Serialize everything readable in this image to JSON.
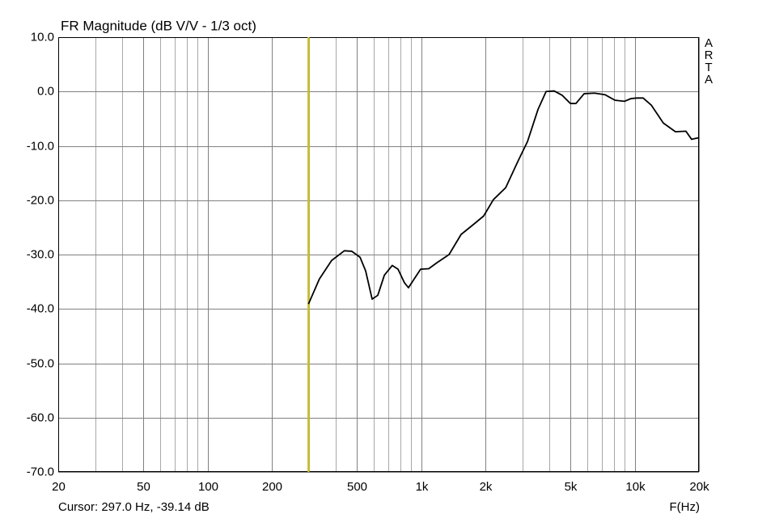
{
  "chart_data": {
    "type": "line",
    "title": "FR Magnitude (dB V/V - 1/3 oct)",
    "x_label": "F(Hz)",
    "watermark": "ARTA",
    "xlog": true,
    "grid": true,
    "xlim": [
      20,
      20000
    ],
    "ylim": [
      -70,
      10
    ],
    "xticks": [
      20,
      50,
      100,
      200,
      500,
      {
        "value": 1000,
        "label": "1k"
      },
      {
        "value": 2000,
        "label": "2k"
      },
      {
        "value": 5000,
        "label": "5k"
      },
      {
        "value": 10000,
        "label": "10k"
      },
      {
        "value": 20000,
        "label": "20k"
      }
    ],
    "xminor": [
      30,
      40,
      60,
      70,
      80,
      90,
      300,
      400,
      600,
      700,
      800,
      900,
      3000,
      4000,
      6000,
      7000,
      8000,
      9000
    ],
    "yticks": [
      {
        "value": 10,
        "label": "10.0"
      },
      {
        "value": 0,
        "label": "0.0"
      },
      {
        "value": -10,
        "label": "-10.0"
      },
      {
        "value": -20,
        "label": "-20.0"
      },
      {
        "value": -30,
        "label": "-30.0"
      },
      {
        "value": -40,
        "label": "-40.0"
      },
      {
        "value": -50,
        "label": "-50.0"
      },
      {
        "value": -60,
        "label": "-60.0"
      },
      {
        "value": -70,
        "label": "-70.0"
      }
    ],
    "cursor": {
      "x": 297.0,
      "y": -39.14,
      "color": "#c8c020",
      "label": "Cursor: 297.0 Hz, -39.14 dB"
    },
    "x": [
      297,
      334,
      381,
      437,
      474,
      518,
      550,
      590,
      627,
      673,
      733,
      780,
      836,
      873,
      928,
      995,
      1086,
      1186,
      1352,
      1539,
      1754,
      1964,
      2180,
      2490,
      2836,
      3150,
      3527,
      3849,
      4200,
      4580,
      5000,
      5310,
      5800,
      6490,
      7280,
      8080,
      8970,
      9610,
      10220,
      10960,
      11960,
      13620,
      15520,
      17380,
      18480,
      20000
    ],
    "series": [
      {
        "color": "#000000",
        "values": [
          -39.1,
          -34.5,
          -31.1,
          -29.3,
          -29.4,
          -30.5,
          -33.0,
          -38.2,
          -37.5,
          -33.8,
          -32.0,
          -32.7,
          -35.2,
          -36.1,
          -34.5,
          -32.7,
          -32.6,
          -31.5,
          -30.0,
          -26.3,
          -24.5,
          -22.9,
          -19.9,
          -17.7,
          -12.9,
          -9.2,
          -3.3,
          0.0,
          0.1,
          -0.7,
          -2.2,
          -2.2,
          -0.4,
          -0.3,
          -0.6,
          -1.6,
          -1.8,
          -1.3,
          -1.2,
          -1.2,
          -2.5,
          -5.8,
          -7.4,
          -7.3,
          -8.8,
          -8.5
        ]
      }
    ]
  }
}
